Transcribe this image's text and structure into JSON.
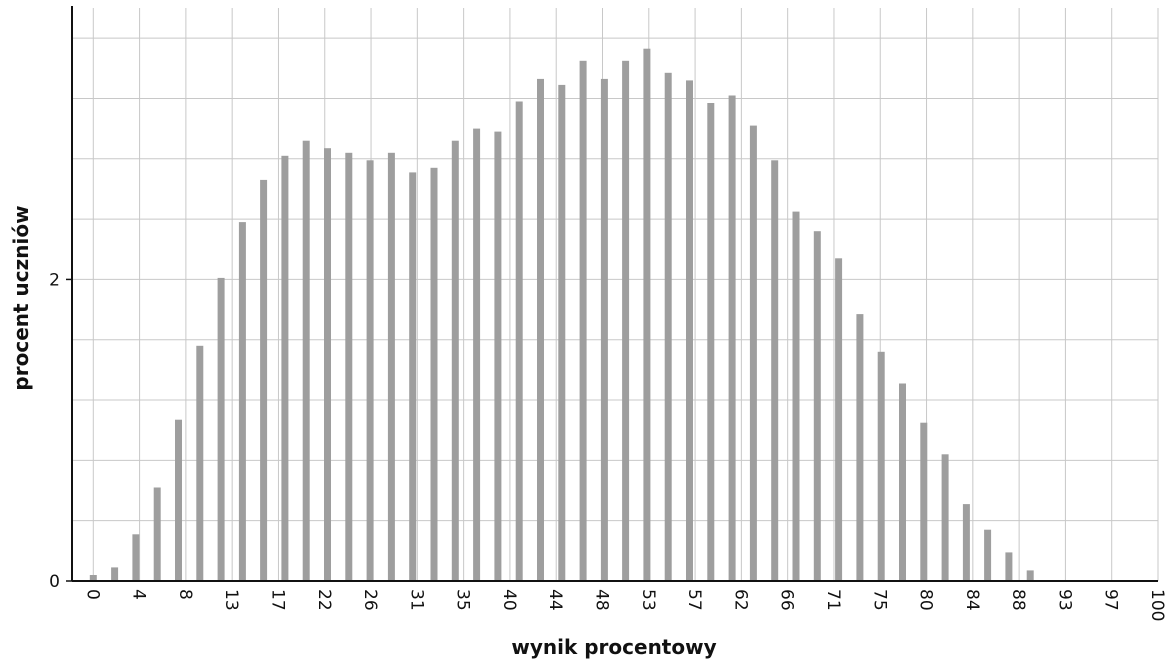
{
  "chart_data": {
    "type": "bar",
    "title": "",
    "xlabel": "wynik procentowy",
    "ylabel": "procent uczniów",
    "x_tick_labels": [
      "0",
      "4",
      "8",
      "13",
      "17",
      "22",
      "26",
      "31",
      "35",
      "40",
      "44",
      "48",
      "53",
      "57",
      "62",
      "66",
      "71",
      "75",
      "80",
      "84",
      "88",
      "93",
      "97",
      "100"
    ],
    "y_tick_labels": [
      "0",
      "2"
    ],
    "x": [
      0,
      2,
      4,
      6,
      8,
      10,
      12,
      14,
      16,
      18,
      20,
      22,
      24,
      26,
      28,
      30,
      32,
      34,
      36,
      38,
      40,
      42,
      44,
      46,
      48,
      50,
      52,
      54,
      56,
      58,
      60,
      62,
      64,
      66,
      68,
      70,
      72,
      74,
      76,
      78,
      80,
      82,
      84,
      86,
      88,
      90,
      92,
      94,
      96,
      98
    ],
    "values": [
      0.04,
      0.09,
      0.31,
      0.62,
      1.07,
      1.56,
      2.01,
      2.38,
      2.66,
      2.82,
      2.92,
      2.87,
      2.84,
      2.79,
      2.84,
      2.71,
      2.74,
      2.92,
      3.0,
      2.98,
      3.18,
      3.33,
      3.29,
      3.45,
      3.33,
      3.45,
      3.53,
      3.37,
      3.32,
      3.17,
      3.22,
      3.02,
      2.79,
      2.45,
      2.32,
      2.14,
      1.77,
      1.52,
      1.31,
      1.05,
      0.84,
      0.51,
      0.34,
      0.19,
      0.07,
      0,
      0,
      0,
      0,
      0
    ],
    "xlim": [
      -2,
      100
    ],
    "ylim": [
      0,
      3.8
    ],
    "grid": true,
    "bar_color": "#9e9e9e"
  }
}
